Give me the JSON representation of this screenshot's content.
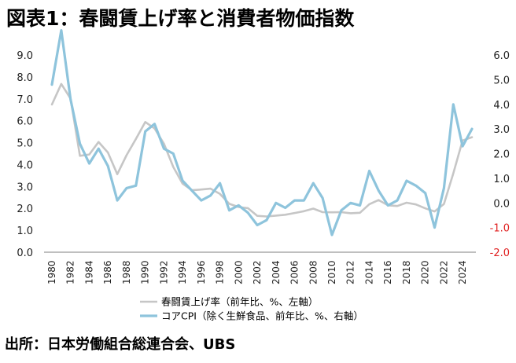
{
  "header": {
    "title": "図表1：春闘賃上げ率と消費者物価指数"
  },
  "footer": {
    "source": "出所：日本労働組合総連合会、UBS"
  },
  "colors": {
    "wage": "#c6c6c6",
    "cpi": "#8ec4dc",
    "axis": "#7f7f7f",
    "negative": "#e02020"
  },
  "chart_data": {
    "type": "line",
    "left_axis": {
      "ylim": [
        0,
        9
      ],
      "ticks": [
        "0.0",
        "1.0",
        "2.0",
        "3.0",
        "4.0",
        "5.0",
        "6.0",
        "7.0",
        "8.0",
        "9.0"
      ]
    },
    "right_axis": {
      "ylim": [
        -2,
        6
      ],
      "ticks": [
        "-2.0",
        "-1.0",
        "0.0",
        "1.0",
        "2.0",
        "3.0",
        "4.0",
        "5.0",
        "6.0"
      ],
      "negative_color": "#e02020"
    },
    "x_ticks": [
      "1980",
      "1982",
      "1984",
      "1986",
      "1988",
      "1990",
      "1992",
      "1994",
      "1996",
      "1998",
      "2000",
      "2002",
      "2004",
      "2006",
      "2008",
      "2010",
      "2012",
      "2014",
      "2016",
      "2018",
      "2020",
      "2022",
      "2024"
    ],
    "grid": false,
    "legend_position": "bottom",
    "series": [
      {
        "name": "春闘賃上げ率（前年比、%、左軸）",
        "axis": "left",
        "x": [
          1980,
          1981,
          1982,
          1983,
          1984,
          1985,
          1986,
          1987,
          1988,
          1989,
          1990,
          1991,
          1992,
          1993,
          1994,
          1995,
          1996,
          1997,
          1998,
          1999,
          2000,
          2001,
          2002,
          2003,
          2004,
          2005,
          2006,
          2007,
          2008,
          2009,
          2010,
          2011,
          2012,
          2013,
          2014,
          2015,
          2016,
          2017,
          2018,
          2019,
          2020,
          2021,
          2022,
          2023,
          2024,
          2025
        ],
        "values": [
          6.74,
          7.68,
          7.01,
          4.4,
          4.46,
          5.03,
          4.55,
          3.56,
          4.43,
          5.17,
          5.94,
          5.65,
          4.95,
          3.89,
          3.13,
          2.83,
          2.86,
          2.9,
          2.66,
          2.21,
          2.06,
          2.01,
          1.66,
          1.63,
          1.67,
          1.71,
          1.79,
          1.87,
          1.99,
          1.83,
          1.82,
          1.83,
          1.78,
          1.8,
          2.19,
          2.38,
          2.14,
          2.11,
          2.26,
          2.18,
          2.0,
          1.86,
          2.2,
          3.6,
          5.1,
          5.25
        ]
      },
      {
        "name": "コアCPI（除く生鮮食品、前年比、%、右軸）",
        "axis": "right",
        "x": [
          1980,
          1981,
          1982,
          1983,
          1984,
          1985,
          1986,
          1987,
          1988,
          1989,
          1990,
          1991,
          1992,
          1993,
          1994,
          1995,
          1996,
          1997,
          1998,
          1999,
          2000,
          2001,
          2002,
          2003,
          2004,
          2005,
          2006,
          2007,
          2008,
          2009,
          2010,
          2011,
          2012,
          2013,
          2014,
          2015,
          2016,
          2017,
          2018,
          2019,
          2020,
          2021,
          2022,
          2023,
          2024,
          2025
        ],
        "values": [
          4.8,
          7.0,
          4.2,
          2.4,
          1.6,
          2.2,
          1.5,
          0.1,
          0.6,
          0.7,
          2.9,
          3.2,
          2.2,
          2.0,
          0.9,
          0.5,
          0.1,
          0.3,
          0.8,
          -0.3,
          -0.1,
          -0.4,
          -0.9,
          -0.7,
          0.0,
          -0.2,
          0.1,
          0.1,
          0.8,
          0.2,
          -1.3,
          -0.3,
          0.0,
          -0.1,
          1.3,
          0.5,
          -0.1,
          0.1,
          0.9,
          0.7,
          0.4,
          -1.0,
          0.6,
          4.0,
          2.3,
          3.0
        ]
      }
    ]
  }
}
